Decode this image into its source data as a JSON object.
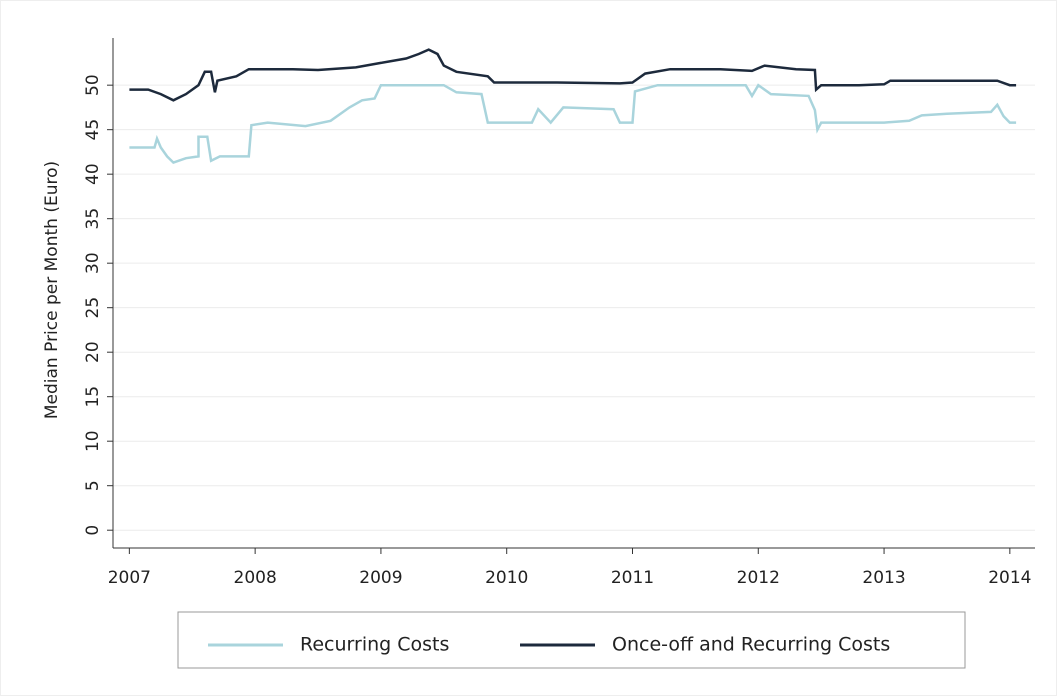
{
  "chart_data": {
    "type": "line",
    "y_label": "Median Price per Month (Euro)",
    "xlim": [
      2006.87,
      2014.2
    ],
    "ylim": [
      -2,
      55.3
    ],
    "xticks": [
      2007,
      2008,
      2009,
      2010,
      2011,
      2012,
      2013,
      2014
    ],
    "yticks": [
      0,
      5,
      10,
      15,
      20,
      25,
      30,
      35,
      40,
      45,
      50
    ],
    "grid": true,
    "series": [
      {
        "name": "Recurring Costs",
        "color": "#a9d4dc",
        "x": [
          2007.0,
          2007.2,
          2007.22,
          2007.25,
          2007.3,
          2007.35,
          2007.45,
          2007.55,
          2007.55,
          2007.62,
          2007.65,
          2007.72,
          2007.95,
          2007.97,
          2008.1,
          2008.4,
          2008.6,
          2008.75,
          2008.85,
          2008.95,
          2009.0,
          2009.5,
          2009.6,
          2009.8,
          2009.85,
          2010.2,
          2010.25,
          2010.35,
          2010.45,
          2010.85,
          2010.9,
          2011.0,
          2011.02,
          2011.2,
          2011.9,
          2011.95,
          2012.0,
          2012.1,
          2012.4,
          2012.45,
          2012.47,
          2012.5,
          2013.0,
          2013.2,
          2013.3,
          2013.5,
          2013.85,
          2013.9,
          2013.95,
          2014.0,
          2014.05
        ],
        "values": [
          43,
          43,
          44,
          43,
          42,
          41.3,
          41.8,
          42,
          44.2,
          44.2,
          41.5,
          42,
          42,
          45.5,
          45.8,
          45.4,
          46,
          47.5,
          48.3,
          48.5,
          50,
          50,
          49.2,
          49,
          45.8,
          45.8,
          47.3,
          45.8,
          47.5,
          47.3,
          45.8,
          45.8,
          49.3,
          50,
          50,
          48.8,
          50,
          49,
          48.8,
          47.2,
          45,
          45.8,
          45.8,
          46,
          46.6,
          46.8,
          47,
          47.8,
          46.5,
          45.8,
          45.8
        ]
      },
      {
        "name": "Once-off and Recurring Costs",
        "color": "#1d2a3c",
        "x": [
          2007.0,
          2007.15,
          2007.25,
          2007.35,
          2007.45,
          2007.55,
          2007.6,
          2007.65,
          2007.68,
          2007.7,
          2007.85,
          2007.95,
          2008.3,
          2008.5,
          2008.8,
          2009.0,
          2009.2,
          2009.3,
          2009.38,
          2009.45,
          2009.5,
          2009.6,
          2009.85,
          2009.9,
          2010.0,
          2010.4,
          2010.9,
          2011.0,
          2011.1,
          2011.3,
          2011.7,
          2011.95,
          2012.05,
          2012.3,
          2012.45,
          2012.46,
          2012.5,
          2012.8,
          2013.0,
          2013.05,
          2013.5,
          2013.9,
          2014.0,
          2014.05
        ],
        "values": [
          49.5,
          49.5,
          49,
          48.3,
          49,
          50,
          51.5,
          51.5,
          49.2,
          50.5,
          51,
          51.8,
          51.8,
          51.7,
          52,
          52.5,
          53,
          53.5,
          54,
          53.5,
          52.2,
          51.5,
          51,
          50.3,
          50.3,
          50.3,
          50.2,
          50.3,
          51.3,
          51.8,
          51.8,
          51.6,
          52.2,
          51.8,
          51.7,
          49.5,
          50,
          50,
          50.1,
          50.5,
          50.5,
          50.5,
          50,
          50
        ]
      }
    ]
  }
}
